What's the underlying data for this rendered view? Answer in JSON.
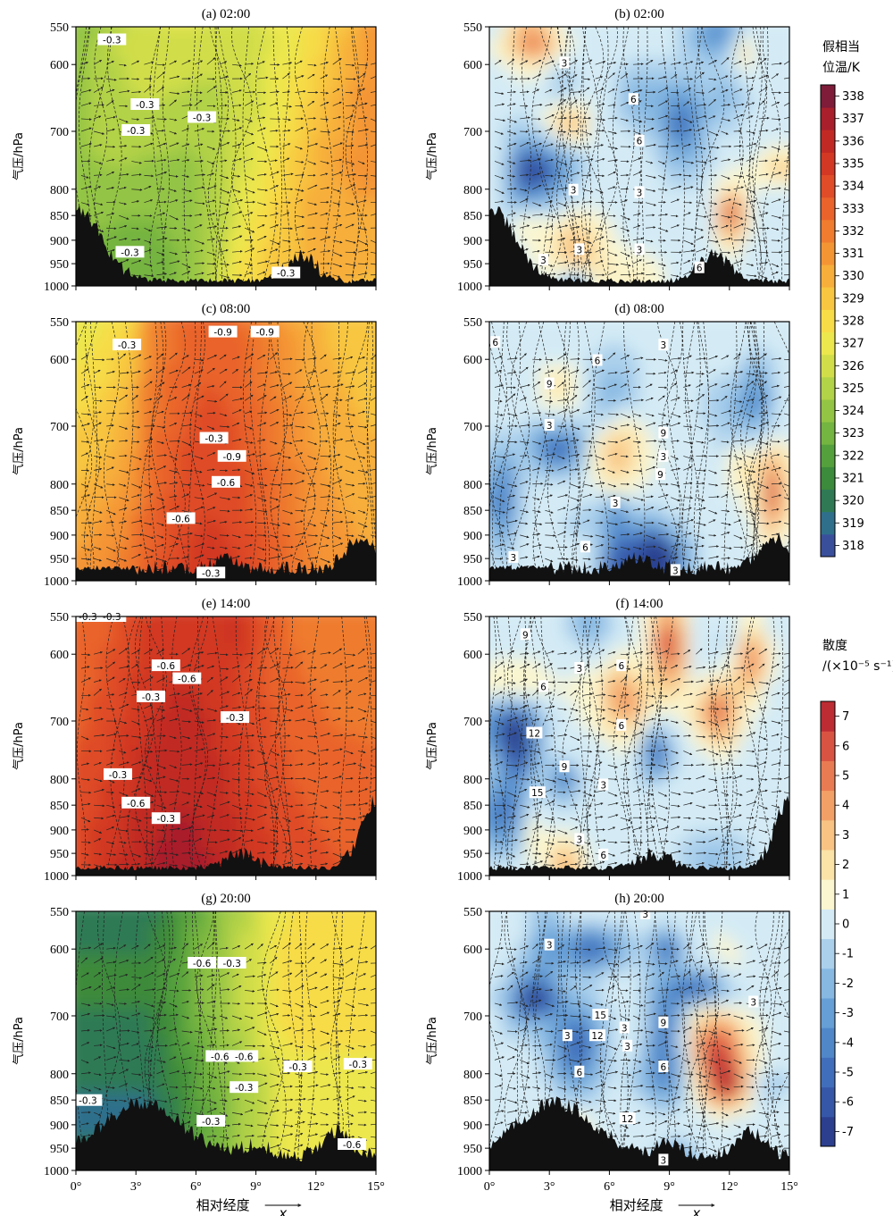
{
  "chart_data": {
    "type": "heatmap",
    "xlabel": "相对经度",
    "x_arrow_label": "x",
    "ylabel": "气压/hPa",
    "x_ticks": [
      "0°",
      "3°",
      "6°",
      "9°",
      "12°",
      "15°"
    ],
    "x_values": [
      0,
      3,
      6,
      9,
      12,
      15
    ],
    "y_ticks": [
      550,
      600,
      700,
      800,
      850,
      900,
      950,
      1000
    ],
    "ylim": [
      1000,
      550
    ],
    "xlim": [
      0,
      15
    ],
    "colorbars": [
      {
        "title_line1": "假相当",
        "title_line2": "位温/K",
        "ticks": [
          318,
          319,
          320,
          321,
          322,
          323,
          324,
          325,
          326,
          327,
          328,
          329,
          330,
          331,
          332,
          333,
          334,
          335,
          336,
          337,
          338
        ],
        "colors": [
          "#3a4f9c",
          "#2f6f8c",
          "#2f7a55",
          "#3c8a3b",
          "#54a03c",
          "#74b440",
          "#93c444",
          "#b2d247",
          "#d1de49",
          "#ece74d",
          "#f7dc47",
          "#f8c640",
          "#f7ae3a",
          "#f49534",
          "#ef7c2f",
          "#e9632b",
          "#df4c27",
          "#d23823",
          "#c12a24",
          "#a91f2c",
          "#7e1c3a"
        ]
      },
      {
        "title_line1": "散度",
        "title_line2": "/(×10⁻⁵ s⁻¹)",
        "ticks": [
          -7,
          -6,
          -5,
          -4,
          -3,
          -2,
          -1,
          0,
          1,
          2,
          3,
          4,
          5,
          6,
          7
        ],
        "colors": [
          "#2c3f8f",
          "#3657a8",
          "#416ebb",
          "#4f87c9",
          "#669fd6",
          "#86b8e2",
          "#aad0ec",
          "#d4ebf5",
          "#fbf6cf",
          "#fbe2a7",
          "#f8c383",
          "#f3a067",
          "#e97b52",
          "#d95343",
          "#bd2c33"
        ]
      }
    ],
    "panels": [
      {
        "title": "(a) 02:00",
        "field": "theta_se",
        "contour_labels": [
          "-0.3",
          "-0.3",
          "-0.3",
          "-0.3",
          "-0.3",
          "-0.3"
        ]
      },
      {
        "title": "(b) 02:00",
        "field": "divergence",
        "contour_labels": [
          "3",
          "3",
          "3",
          "6",
          "6",
          "3",
          "3",
          "6",
          "3"
        ]
      },
      {
        "title": "(c) 08:00",
        "field": "theta_se",
        "contour_labels": [
          "-0.3",
          "-0.9",
          "-0.9",
          "-0.3",
          "-0.9",
          "-0.6",
          "-0.6",
          "-0.3"
        ]
      },
      {
        "title": "(d) 08:00",
        "field": "divergence",
        "contour_labels": [
          "6",
          "6",
          "3",
          "9",
          "3",
          "9",
          "3",
          "9",
          "3",
          "6",
          "3",
          "3"
        ]
      },
      {
        "title": "(e) 14:00",
        "field": "theta_se",
        "contour_labels": [
          "-0.3",
          "-0.6",
          "-0.6",
          "-0.3",
          "-0.3",
          "-0.3",
          "-0.6",
          "-0.3",
          "-0.3"
        ]
      },
      {
        "title": "(f) 14:00",
        "field": "divergence",
        "contour_labels": [
          "9",
          "6",
          "3",
          "6",
          "12",
          "6",
          "9",
          "15",
          "3",
          "3",
          "6"
        ]
      },
      {
        "title": "(g) 20:00",
        "field": "theta_se",
        "contour_labels": [
          "-0.6",
          "-0.3",
          "-0.6",
          "-0.6",
          "-0.3",
          "-0.3",
          "-0.3",
          "-0.3",
          "-0.3",
          "-0.6"
        ]
      },
      {
        "title": "(h) 20:00",
        "field": "divergence",
        "contour_labels": [
          "3",
          "3",
          "3",
          "15",
          "3",
          "12",
          "3",
          "9",
          "3",
          "6",
          "6",
          "12",
          "3"
        ]
      }
    ]
  }
}
